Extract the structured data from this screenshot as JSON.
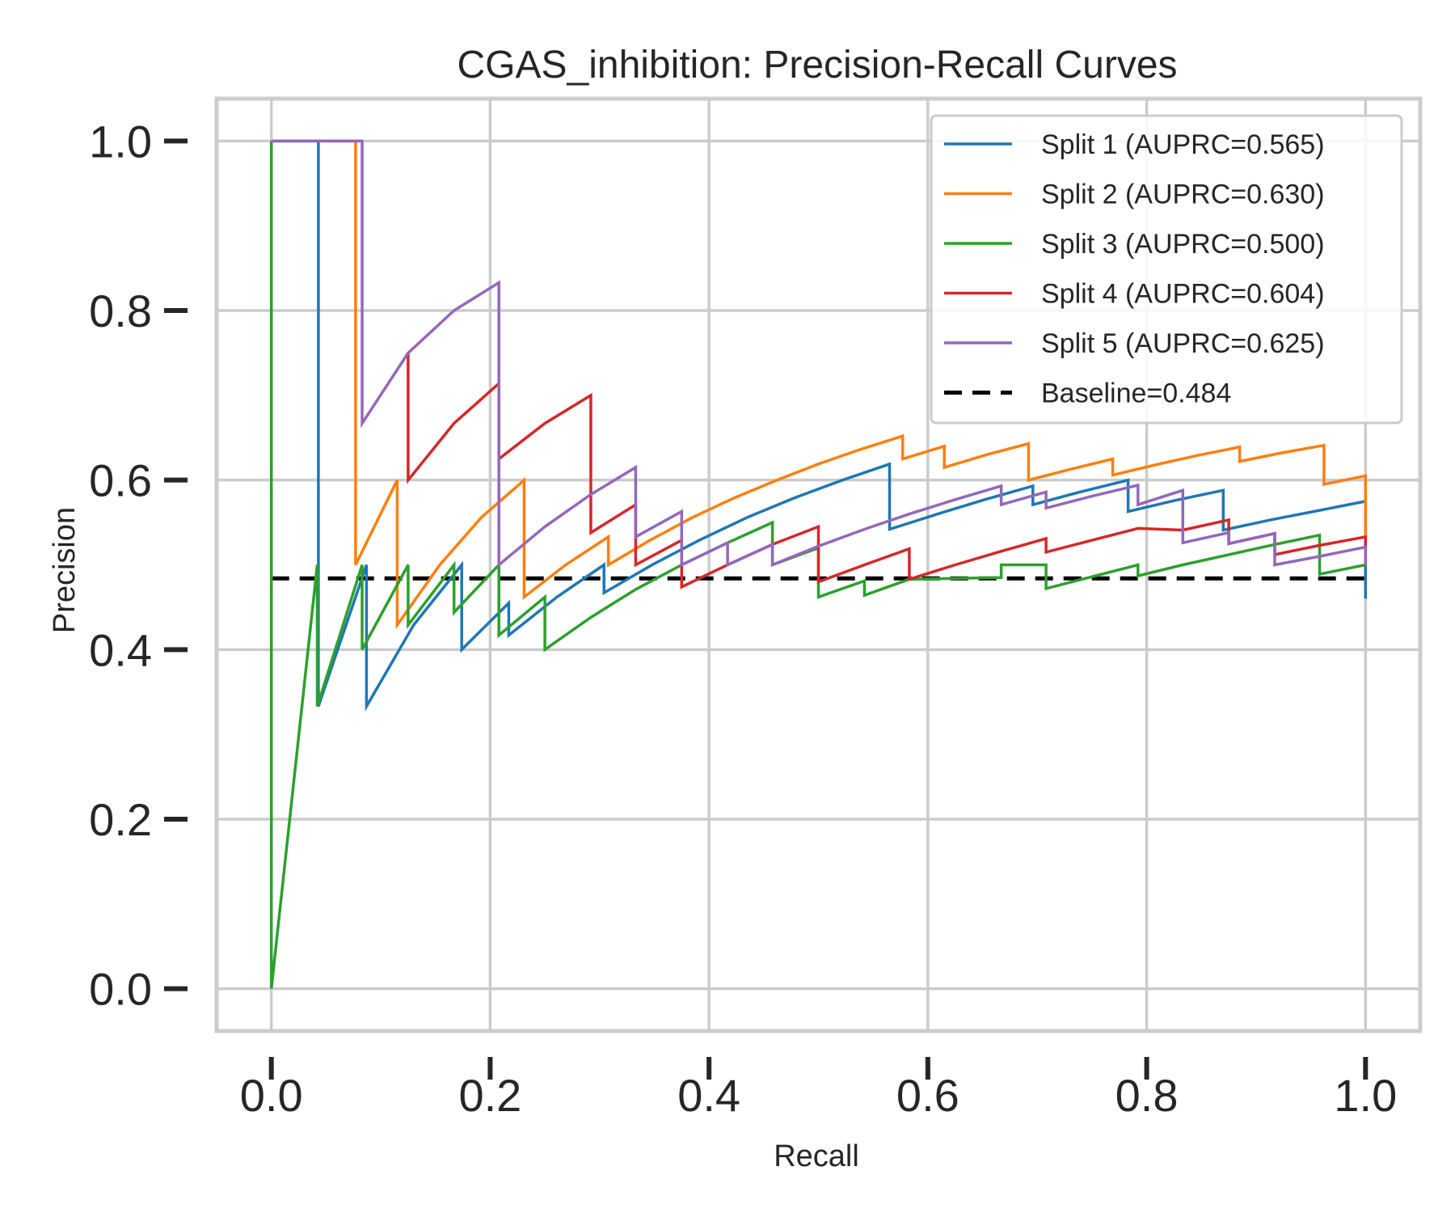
{
  "chart_data": {
    "type": "line",
    "title": "CGAS_inhibition: Precision-Recall Curves",
    "xlabel": "Recall",
    "ylabel": "Precision",
    "xlim": [
      -0.05,
      1.05
    ],
    "ylim": [
      -0.05,
      1.05
    ],
    "xticks": [
      "0.0",
      "0.2",
      "0.4",
      "0.6",
      "0.8",
      "1.0"
    ],
    "yticks": [
      "0.0",
      "0.2",
      "0.4",
      "0.6",
      "0.8",
      "1.0"
    ],
    "grid": true,
    "legend_position": "top-right",
    "series": [
      {
        "name": "Split 1 (AUPRC=0.565)",
        "color": "#1f77b4",
        "x": [
          0,
          0.043,
          0.043,
          0.043,
          0.087,
          0.087,
          0.087,
          0.13,
          0.174,
          0.174,
          0.217,
          0.217,
          0.261,
          0.304,
          0.304,
          0.348,
          0.391,
          0.435,
          0.478,
          0.522,
          0.565,
          0.565,
          0.609,
          0.652,
          0.696,
          0.696,
          0.739,
          0.783,
          0.783,
          0.826,
          0.87,
          0.87,
          0.913,
          0.957,
          1.0,
          1.0
        ],
        "y": [
          1.0,
          1.0,
          1.0,
          0.333,
          0.5,
          0.5,
          0.333,
          0.429,
          0.5,
          0.4,
          0.455,
          0.417,
          0.462,
          0.5,
          0.467,
          0.5,
          0.529,
          0.556,
          0.579,
          0.6,
          0.619,
          0.542,
          0.56,
          0.577,
          0.593,
          0.571,
          0.586,
          0.6,
          0.563,
          0.576,
          0.588,
          0.541,
          0.553,
          0.564,
          0.575,
          0.46
        ]
      },
      {
        "name": "Split 2 (AUPRC=0.630)",
        "color": "#ff7f0e",
        "x": [
          0,
          0.077,
          0.077,
          0.115,
          0.115,
          0.154,
          0.192,
          0.231,
          0.231,
          0.269,
          0.308,
          0.308,
          0.346,
          0.385,
          0.423,
          0.462,
          0.5,
          0.538,
          0.577,
          0.577,
          0.615,
          0.615,
          0.654,
          0.692,
          0.692,
          0.731,
          0.769,
          0.769,
          0.808,
          0.846,
          0.885,
          0.885,
          0.923,
          0.962,
          0.962,
          1.0,
          1.0
        ],
        "y": [
          1.0,
          1.0,
          0.5,
          0.6,
          0.429,
          0.5,
          0.556,
          0.6,
          0.462,
          0.5,
          0.533,
          0.5,
          0.529,
          0.556,
          0.579,
          0.6,
          0.619,
          0.636,
          0.652,
          0.625,
          0.64,
          0.615,
          0.63,
          0.643,
          0.6,
          0.613,
          0.625,
          0.606,
          0.618,
          0.629,
          0.639,
          0.622,
          0.632,
          0.641,
          0.595,
          0.605,
          0.52
        ]
      },
      {
        "name": "Split 3 (AUPRC=0.500)",
        "color": "#2ca02c",
        "x": [
          0,
          0,
          0.042,
          0.042,
          0.083,
          0.083,
          0.125,
          0.125,
          0.167,
          0.167,
          0.208,
          0.208,
          0.25,
          0.25,
          0.292,
          0.333,
          0.375,
          0.417,
          0.458,
          0.458,
          0.5,
          0.5,
          0.542,
          0.542,
          0.583,
          0.625,
          0.667,
          0.667,
          0.708,
          0.708,
          0.75,
          0.792,
          0.792,
          0.833,
          0.875,
          0.917,
          0.958,
          0.958,
          1.0
        ],
        "y": [
          1.0,
          0.0,
          0.5,
          0.333,
          0.5,
          0.4,
          0.5,
          0.429,
          0.5,
          0.444,
          0.5,
          0.417,
          0.462,
          0.4,
          0.438,
          0.471,
          0.5,
          0.526,
          0.55,
          0.5,
          0.52,
          0.462,
          0.481,
          0.464,
          0.483,
          0.484,
          0.485,
          0.5,
          0.5,
          0.472,
          0.486,
          0.5,
          0.487,
          0.5,
          0.512,
          0.524,
          0.535,
          0.489,
          0.5
        ]
      },
      {
        "name": "Split 4 (AUPRC=0.604)",
        "color": "#d62728",
        "x": [
          0.125,
          0.125,
          0.167,
          0.208,
          0.208,
          0.25,
          0.292,
          0.292,
          0.333,
          0.333,
          0.375,
          0.375,
          0.417,
          0.458,
          0.5,
          0.5,
          0.542,
          0.583,
          0.583,
          0.625,
          0.667,
          0.708,
          0.708,
          0.75,
          0.792,
          0.833,
          0.875,
          0.875,
          0.917,
          0.917,
          0.958,
          1.0,
          1.0
        ],
        "y": [
          0.75,
          0.6,
          0.667,
          0.714,
          0.625,
          0.667,
          0.7,
          0.538,
          0.571,
          0.5,
          0.529,
          0.474,
          0.5,
          0.524,
          0.545,
          0.48,
          0.5,
          0.519,
          0.483,
          0.5,
          0.516,
          0.531,
          0.515,
          0.529,
          0.543,
          0.541,
          0.553,
          0.525,
          0.537,
          0.512,
          0.523,
          0.533,
          0.5
        ]
      },
      {
        "name": "Split 5 (AUPRC=0.625)",
        "color": "#9467bd",
        "x": [
          0,
          0.083,
          0.083,
          0.125,
          0.167,
          0.208,
          0.208,
          0.25,
          0.292,
          0.333,
          0.333,
          0.375,
          0.375,
          0.417,
          0.417,
          0.458,
          0.458,
          0.5,
          0.542,
          0.583,
          0.625,
          0.667,
          0.667,
          0.708,
          0.708,
          0.75,
          0.792,
          0.792,
          0.833,
          0.833,
          0.875,
          0.875,
          0.917,
          0.917,
          0.958,
          1.0,
          1.0
        ],
        "y": [
          1.0,
          1.0,
          0.667,
          0.75,
          0.8,
          0.833,
          0.5,
          0.545,
          0.583,
          0.615,
          0.533,
          0.563,
          0.5,
          0.526,
          0.5,
          0.524,
          0.5,
          0.522,
          0.542,
          0.56,
          0.577,
          0.593,
          0.571,
          0.586,
          0.567,
          0.581,
          0.594,
          0.571,
          0.588,
          0.526,
          0.538,
          0.525,
          0.537,
          0.5,
          0.51,
          0.521,
          0.5
        ]
      }
    ],
    "baseline": {
      "name": "Baseline=0.484",
      "value": 0.484,
      "color": "#000000"
    }
  }
}
